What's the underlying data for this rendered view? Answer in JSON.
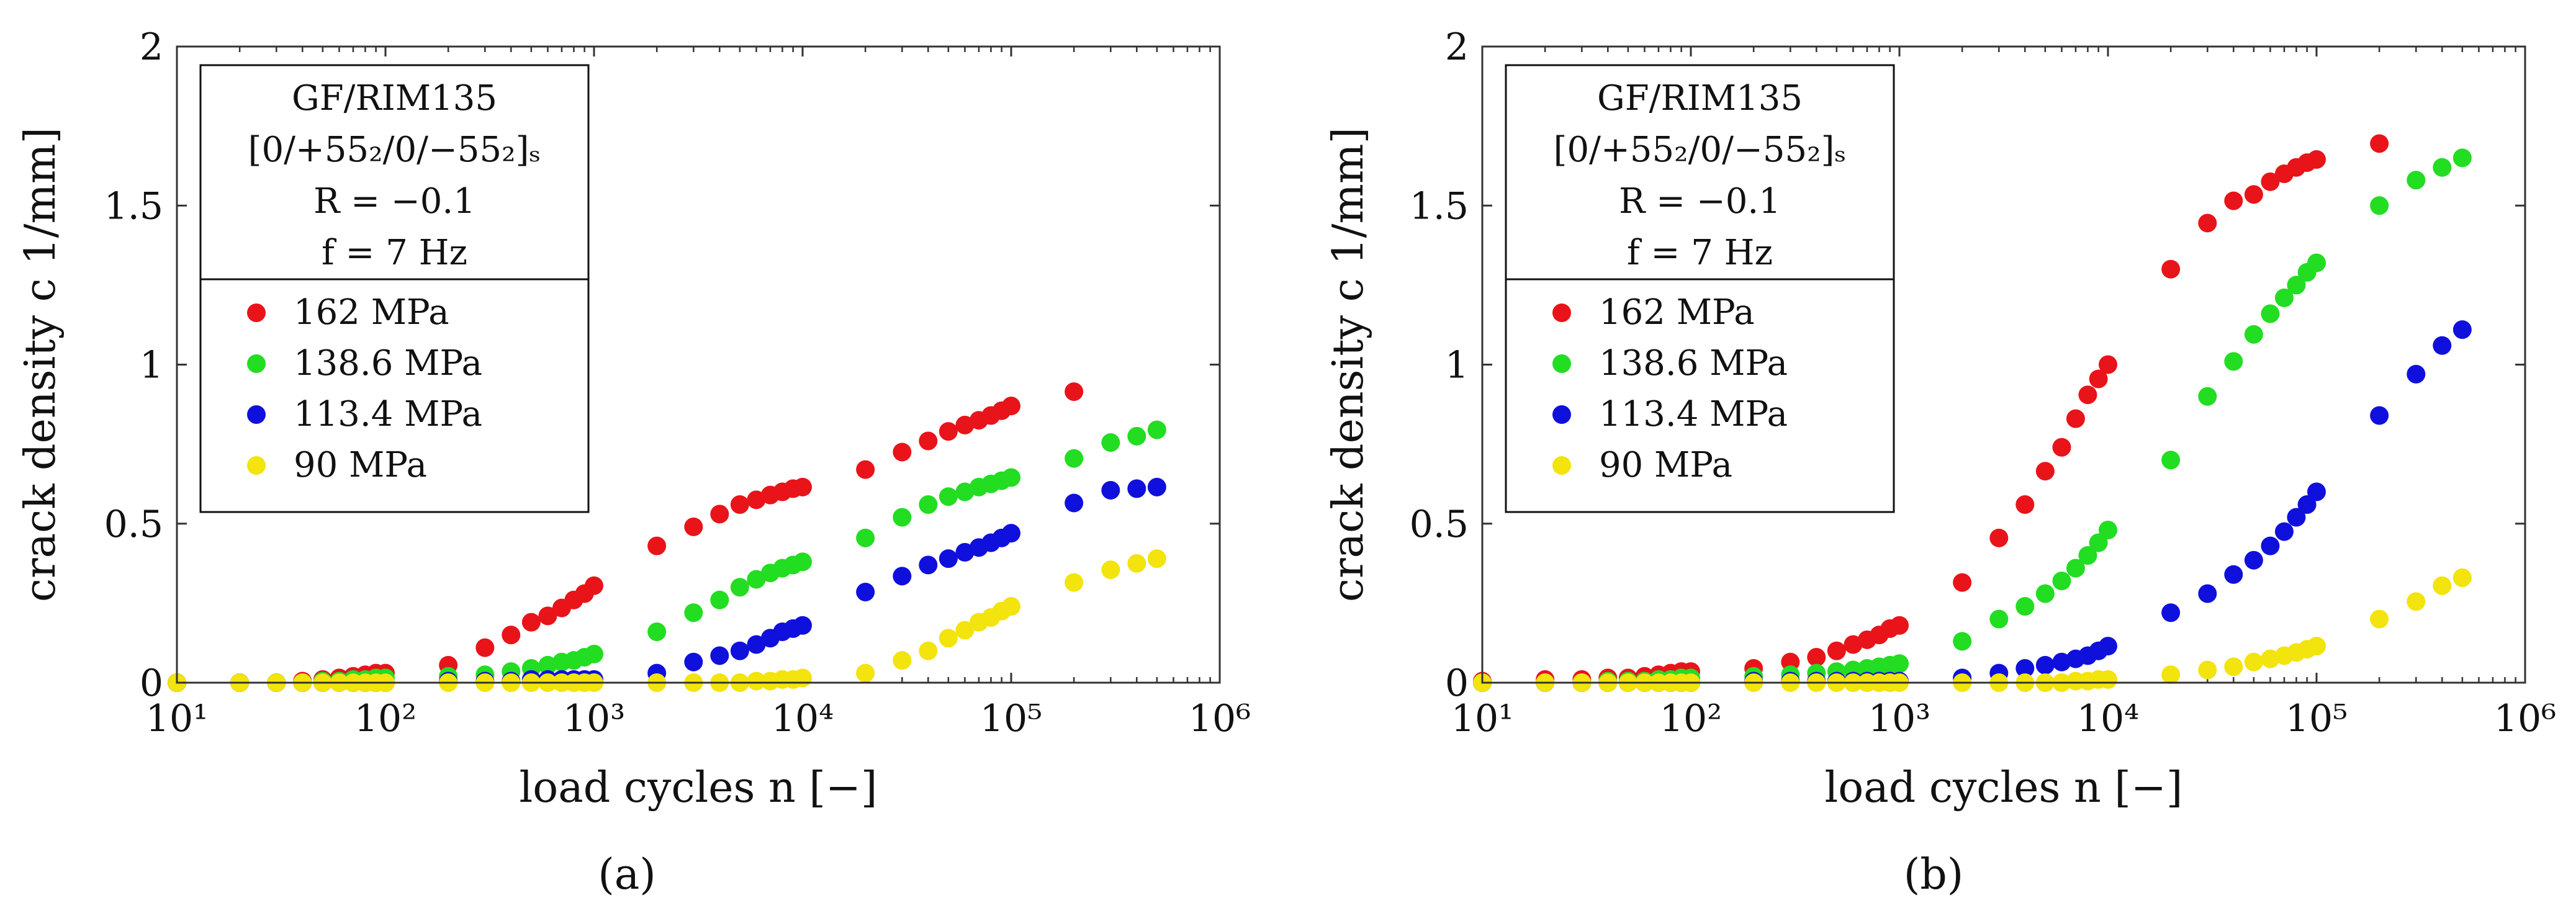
{
  "panels": [
    {
      "caption": "(a)",
      "legend": {
        "title_lines": [
          "GF/RIM135",
          "[0/+55₂/0/−55₂]ₛ",
          "R = −0.1",
          "f = 7 Hz"
        ],
        "entries": [
          "162 MPa",
          "138.6 MPa",
          "113.4 MPa",
          "90 MPa"
        ]
      }
    },
    {
      "caption": "(b)",
      "legend": {
        "title_lines": [
          "GF/RIM135",
          "[0/+55₂/0/−55₂]ₛ",
          "R = −0.1",
          "f = 7 Hz"
        ],
        "entries": [
          "162 MPa",
          "138.6 MPa",
          "113.4 MPa",
          "90 MPa"
        ]
      }
    }
  ],
  "colors": {
    "162 MPa": "#e8141a",
    "138.6 MPa": "#22dd22",
    "113.4 MPa": "#1010dd",
    "90 MPa": "#f2e40c"
  },
  "chart_data": [
    {
      "type": "scatter",
      "title": "",
      "xlabel": "load cycles n [−]",
      "ylabel": "crack density c  1/mm]",
      "xscale": "log",
      "xlim": [
        10,
        1000000
      ],
      "ylim": [
        0,
        2
      ],
      "xtick_labels": [
        "10¹",
        "10²",
        "10³",
        "10⁴",
        "10⁵",
        "10⁶"
      ],
      "ytick_labels": [
        "0",
        "0.5",
        "1",
        "1.5",
        "2"
      ],
      "legend_position": "top-left",
      "series": [
        {
          "name": "162 MPa",
          "x": [
            10,
            20,
            30,
            40,
            50,
            60,
            70,
            80,
            90,
            100,
            200,
            300,
            400,
            500,
            600,
            700,
            800,
            900,
            1000,
            2000,
            3000,
            4000,
            5000,
            6000,
            7000,
            8000,
            9000,
            10000,
            20000,
            30000,
            40000,
            50000,
            60000,
            70000,
            80000,
            90000,
            100000,
            200000
          ],
          "y": [
            0.0,
            0.0,
            0.0,
            0.005,
            0.01,
            0.015,
            0.02,
            0.025,
            0.03,
            0.03,
            0.055,
            0.11,
            0.15,
            0.19,
            0.21,
            0.235,
            0.26,
            0.28,
            0.305,
            0.43,
            0.49,
            0.53,
            0.56,
            0.575,
            0.59,
            0.6,
            0.61,
            0.615,
            0.67,
            0.725,
            0.76,
            0.79,
            0.81,
            0.825,
            0.84,
            0.855,
            0.87,
            0.915
          ]
        },
        {
          "name": "138.6 MPa",
          "x": [
            10,
            20,
            30,
            40,
            50,
            60,
            70,
            80,
            90,
            100,
            200,
            300,
            400,
            500,
            600,
            700,
            800,
            900,
            1000,
            2000,
            3000,
            4000,
            5000,
            6000,
            7000,
            8000,
            9000,
            10000,
            20000,
            30000,
            40000,
            50000,
            60000,
            70000,
            80000,
            90000,
            100000,
            200000,
            300000,
            400000,
            500000
          ],
          "y": [
            0.0,
            0.0,
            0.0,
            0.0,
            0.005,
            0.005,
            0.01,
            0.01,
            0.015,
            0.015,
            0.02,
            0.025,
            0.035,
            0.045,
            0.055,
            0.065,
            0.07,
            0.08,
            0.09,
            0.16,
            0.22,
            0.26,
            0.3,
            0.325,
            0.345,
            0.36,
            0.37,
            0.38,
            0.455,
            0.52,
            0.56,
            0.585,
            0.6,
            0.615,
            0.625,
            0.635,
            0.645,
            0.705,
            0.755,
            0.775,
            0.795
          ]
        },
        {
          "name": "113.4 MPa",
          "x": [
            10,
            20,
            30,
            40,
            50,
            60,
            70,
            80,
            90,
            100,
            200,
            300,
            400,
            500,
            600,
            700,
            800,
            900,
            1000,
            2000,
            3000,
            4000,
            5000,
            6000,
            7000,
            8000,
            9000,
            10000,
            20000,
            30000,
            40000,
            50000,
            60000,
            70000,
            80000,
            90000,
            100000,
            200000,
            300000,
            400000,
            500000
          ],
          "y": [
            0.0,
            0.0,
            0.0,
            0.0,
            0.0,
            0.0,
            0.0,
            0.0,
            0.0,
            0.0,
            0.005,
            0.005,
            0.005,
            0.01,
            0.01,
            0.01,
            0.01,
            0.01,
            0.01,
            0.03,
            0.065,
            0.085,
            0.1,
            0.12,
            0.14,
            0.16,
            0.17,
            0.18,
            0.285,
            0.335,
            0.37,
            0.39,
            0.41,
            0.425,
            0.44,
            0.455,
            0.47,
            0.565,
            0.605,
            0.61,
            0.615
          ]
        },
        {
          "name": "90 MPa",
          "x": [
            10,
            20,
            30,
            40,
            50,
            60,
            70,
            80,
            90,
            100,
            200,
            300,
            400,
            500,
            600,
            700,
            800,
            900,
            1000,
            2000,
            3000,
            4000,
            5000,
            6000,
            7000,
            8000,
            9000,
            10000,
            20000,
            30000,
            40000,
            50000,
            60000,
            70000,
            80000,
            90000,
            100000,
            200000,
            300000,
            400000,
            500000
          ],
          "y": [
            0.0,
            0.0,
            0.0,
            0.0,
            0.0,
            0.0,
            0.0,
            0.0,
            0.0,
            0.0,
            0.0,
            0.0,
            0.0,
            0.0,
            0.0,
            0.0,
            0.0,
            0.0,
            0.0,
            0.0,
            0.0,
            0.0,
            0.0,
            0.005,
            0.005,
            0.01,
            0.01,
            0.015,
            0.03,
            0.07,
            0.1,
            0.14,
            0.165,
            0.19,
            0.205,
            0.225,
            0.24,
            0.315,
            0.355,
            0.375,
            0.39
          ]
        }
      ]
    },
    {
      "type": "scatter",
      "title": "",
      "xlabel": "load cycles n [−]",
      "ylabel": "crack density c  1/mm]",
      "xscale": "log",
      "xlim": [
        10,
        1000000
      ],
      "ylim": [
        0,
        2
      ],
      "xtick_labels": [
        "10¹",
        "10²",
        "10³",
        "10⁴",
        "10⁵",
        "10⁶"
      ],
      "ytick_labels": [
        "0",
        "0.5",
        "1",
        "1.5",
        "2"
      ],
      "legend_position": "top-left",
      "series": [
        {
          "name": "162 MPa",
          "x": [
            10,
            20,
            30,
            40,
            50,
            60,
            70,
            80,
            90,
            100,
            200,
            300,
            400,
            500,
            600,
            700,
            800,
            900,
            1000,
            2000,
            3000,
            4000,
            5000,
            6000,
            7000,
            8000,
            9000,
            10000,
            20000,
            30000,
            40000,
            50000,
            60000,
            70000,
            80000,
            90000,
            100000,
            200000
          ],
          "y": [
            0.005,
            0.01,
            0.01,
            0.015,
            0.015,
            0.02,
            0.025,
            0.03,
            0.035,
            0.035,
            0.045,
            0.065,
            0.08,
            0.1,
            0.12,
            0.135,
            0.15,
            0.17,
            0.18,
            0.315,
            0.455,
            0.56,
            0.665,
            0.74,
            0.83,
            0.905,
            0.955,
            1.0,
            1.3,
            1.445,
            1.515,
            1.535,
            1.575,
            1.6,
            1.62,
            1.635,
            1.645,
            1.695
          ]
        },
        {
          "name": "138.6 MPa",
          "x": [
            10,
            20,
            30,
            40,
            50,
            60,
            70,
            80,
            90,
            100,
            200,
            300,
            400,
            500,
            600,
            700,
            800,
            900,
            1000,
            2000,
            3000,
            4000,
            5000,
            6000,
            7000,
            8000,
            9000,
            10000,
            20000,
            30000,
            40000,
            50000,
            60000,
            70000,
            80000,
            90000,
            100000,
            200000,
            300000,
            400000,
            500000
          ],
          "y": [
            0.0,
            0.0,
            0.0,
            0.005,
            0.005,
            0.005,
            0.01,
            0.01,
            0.015,
            0.015,
            0.02,
            0.025,
            0.03,
            0.035,
            0.04,
            0.045,
            0.05,
            0.055,
            0.06,
            0.13,
            0.2,
            0.24,
            0.28,
            0.32,
            0.36,
            0.4,
            0.44,
            0.48,
            0.7,
            0.9,
            1.01,
            1.095,
            1.16,
            1.21,
            1.25,
            1.29,
            1.32,
            1.5,
            1.58,
            1.62,
            1.65
          ]
        },
        {
          "name": "113.4 MPa",
          "x": [
            10,
            20,
            30,
            40,
            50,
            60,
            70,
            80,
            90,
            100,
            200,
            300,
            400,
            500,
            600,
            700,
            800,
            900,
            1000,
            2000,
            3000,
            4000,
            5000,
            6000,
            7000,
            8000,
            9000,
            10000,
            20000,
            30000,
            40000,
            50000,
            60000,
            70000,
            80000,
            90000,
            100000,
            200000,
            300000,
            400000,
            500000
          ],
          "y": [
            0.0,
            0.0,
            0.0,
            0.0,
            0.0,
            0.0,
            0.0,
            0.0,
            0.0,
            0.0,
            0.005,
            0.005,
            0.005,
            0.005,
            0.005,
            0.005,
            0.005,
            0.005,
            0.005,
            0.015,
            0.03,
            0.045,
            0.055,
            0.065,
            0.075,
            0.085,
            0.1,
            0.115,
            0.22,
            0.28,
            0.34,
            0.385,
            0.43,
            0.475,
            0.52,
            0.56,
            0.6,
            0.84,
            0.97,
            1.06,
            1.11
          ]
        },
        {
          "name": "90 MPa",
          "x": [
            10,
            20,
            30,
            40,
            50,
            60,
            70,
            80,
            90,
            100,
            200,
            300,
            400,
            500,
            600,
            700,
            800,
            900,
            1000,
            2000,
            3000,
            4000,
            5000,
            6000,
            7000,
            8000,
            9000,
            10000,
            20000,
            30000,
            40000,
            50000,
            60000,
            70000,
            80000,
            90000,
            100000,
            200000,
            300000,
            400000,
            500000
          ],
          "y": [
            0.0,
            0.0,
            0.0,
            0.0,
            0.0,
            0.0,
            0.0,
            0.0,
            0.0,
            0.0,
            0.0,
            0.0,
            0.0,
            0.0,
            0.0,
            0.0,
            0.0,
            0.0,
            0.0,
            0.0,
            0.0,
            0.0,
            0.0,
            0.0,
            0.005,
            0.005,
            0.01,
            0.01,
            0.025,
            0.04,
            0.05,
            0.065,
            0.075,
            0.085,
            0.095,
            0.105,
            0.115,
            0.2,
            0.255,
            0.305,
            0.33
          ]
        }
      ]
    }
  ]
}
